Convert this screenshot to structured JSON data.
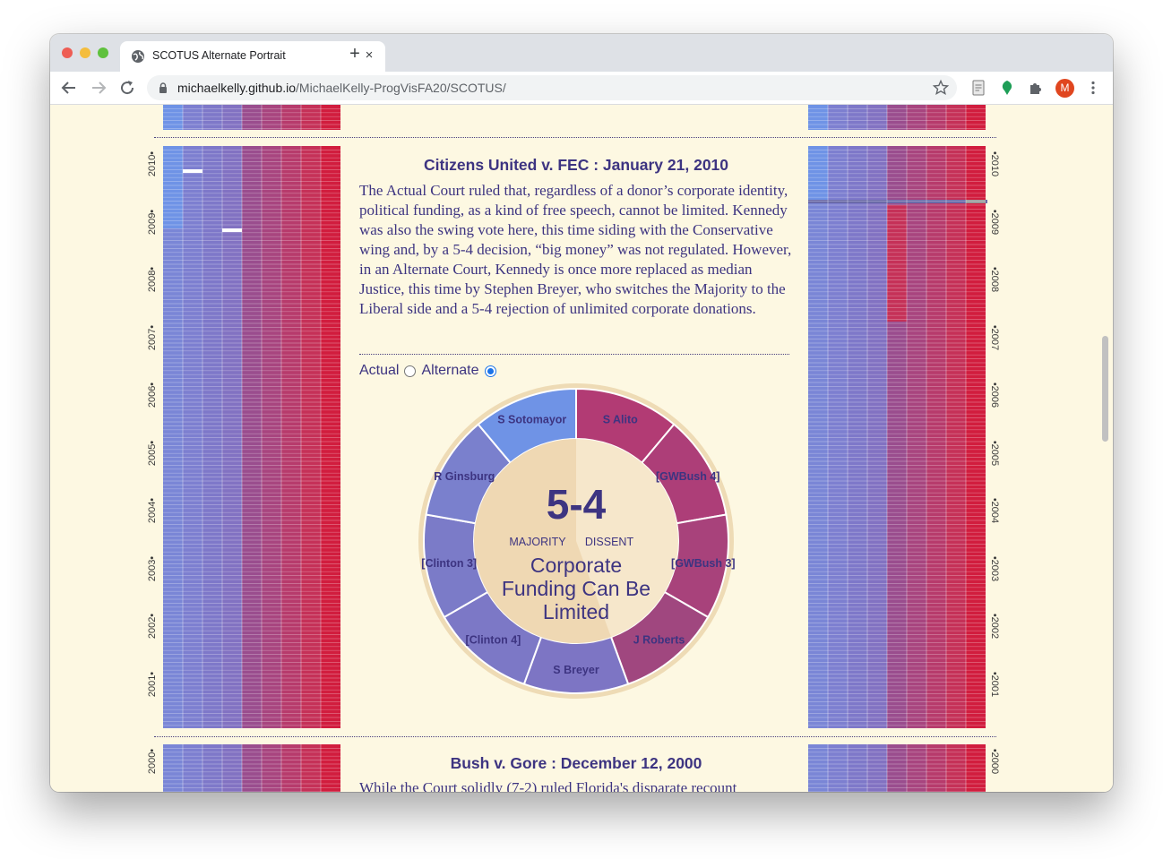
{
  "browser": {
    "tab_title": "SCOTUS Alternate Portrait",
    "tab_close": "×",
    "new_tab": "+",
    "url_domain": "michaelkelly.github.io",
    "url_path": "/MichaelKelly-ProgVisFA20/SCOTUS/",
    "profile_initial": "M"
  },
  "colors": {
    "liberal": "#6f93e6",
    "liberal_mid": "#7d78c9",
    "conservative": "#b23b74",
    "conservative_strong": "#d11d3e",
    "text": "#3d3481",
    "background": "#fdf8e2"
  },
  "years": {
    "top_section": [
      "2010",
      "2009",
      "2008",
      "2007",
      "2006",
      "2005",
      "2004",
      "2003",
      "2002",
      "2001"
    ],
    "bottom_section": [
      "2000"
    ]
  },
  "case1": {
    "title": "Citizens United v. FEC : January 21, 2010",
    "text": "The Actual Court ruled that, regardless of a donor’s corporate identity, political funding, as a kind of free speech, cannot be limited. Kennedy was also the swing vote here, this time siding with the Conservative wing and, by a 5-4 decision, “big money” was not regulated. However, in an Alternate Court, Kennedy is once more replaced as median Justice, this time by Stephen Breyer, who switches the Majority to the Liberal side and a 5-4 rejection of unlimited corporate donations.",
    "toggle": {
      "actual_label": "Actual",
      "alternate_label": "Alternate",
      "selected": "Alternate"
    },
    "vote": {
      "score": "5-4",
      "majority_label": "MAJORITY",
      "dissent_label": "DISSENT",
      "outcome": [
        "Corporate",
        "Funding Can Be",
        "Limited"
      ],
      "justices": [
        {
          "name": "S Alito",
          "side": "dissent",
          "color": "#b23b74"
        },
        {
          "name": "[GWBush 4]",
          "side": "dissent",
          "color": "#ad3e78"
        },
        {
          "name": "[GWBush 3]",
          "side": "dissent",
          "color": "#a8427b"
        },
        {
          "name": "J Roberts",
          "side": "dissent",
          "color": "#a0477f"
        },
        {
          "name": "S Breyer",
          "side": "majority",
          "color": "#7d75c4"
        },
        {
          "name": "[Clinton 4]",
          "side": "majority",
          "color": "#7c78c6"
        },
        {
          "name": "[Clinton 3]",
          "side": "majority",
          "color": "#7b7bc8"
        },
        {
          "name": "R Ginsburg",
          "side": "majority",
          "color": "#7a80cd"
        },
        {
          "name": "S Sotomayor",
          "side": "majority",
          "color": "#6f93e6"
        }
      ]
    }
  },
  "case2": {
    "title": "Bush v. Gore : December 12, 2000",
    "text_start": "While the Court solidly (7-2) ruled Florida's disparate recount"
  }
}
